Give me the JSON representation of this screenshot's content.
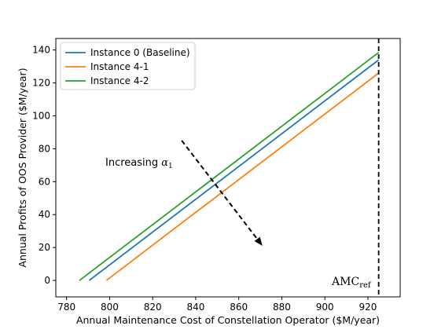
{
  "chart_data": {
    "type": "line",
    "title": "",
    "xlabel": "Annual Maintenance Cost of Constellation Operator ($M/year)",
    "ylabel": "Annual Profits of OOS Provider ($M/year)",
    "xlim": [
      775,
      935
    ],
    "ylim": [
      -10,
      147
    ],
    "xticks": [
      780,
      800,
      820,
      840,
      860,
      880,
      900,
      920
    ],
    "yticks": [
      0,
      20,
      40,
      60,
      80,
      100,
      120,
      140
    ],
    "grid": false,
    "legend_position": "top-left",
    "series": [
      {
        "name": "Instance 0 (Baseline)",
        "color": "#1f77b4",
        "x": [
          790.5,
          925
        ],
        "y": [
          0,
          134
        ]
      },
      {
        "name": "Instance 4-1",
        "color": "#ff7f0e",
        "x": [
          798.5,
          925
        ],
        "y": [
          0,
          126
        ]
      },
      {
        "name": "Instance 4-2",
        "color": "#2ca02c",
        "x": [
          786,
          925
        ],
        "y": [
          0,
          138.5
        ]
      }
    ],
    "reference_line": {
      "x": 925,
      "label_main": "AMC",
      "label_sub": "ref",
      "style": "dashed",
      "color": "#000000"
    },
    "annotation": {
      "text_main": "Increasing ",
      "symbol": "α",
      "symbol_sub": "1",
      "arrow": {
        "from": [
          833.5,
          85
        ],
        "to": [
          871,
          21
        ]
      }
    }
  }
}
